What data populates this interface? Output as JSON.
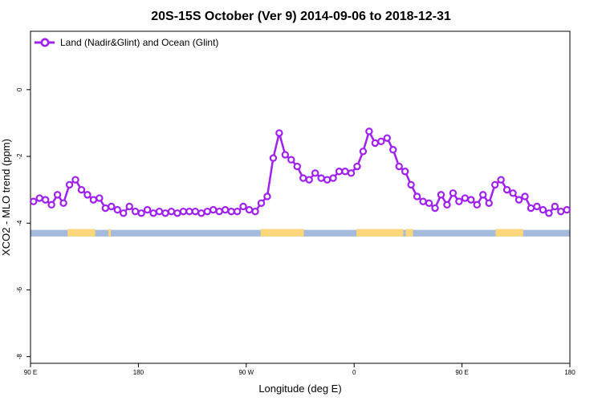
{
  "chart_data": {
    "type": "line",
    "title": "20S-15S October (Ver 9)   2014-09-06 to 2018-12-31",
    "xlabel": "Longitude (deg E)",
    "ylabel": "XCO2 - MLO trend (ppm)",
    "x_ticks": [
      {
        "value": 90,
        "label": "90 E"
      },
      {
        "value": 180,
        "label": "180"
      },
      {
        "value": 270,
        "label": "90 W"
      },
      {
        "value": 360,
        "label": "0"
      },
      {
        "value": 450,
        "label": "90 E"
      },
      {
        "value": 540,
        "label": "180"
      }
    ],
    "y_ticks": [
      {
        "value": 0,
        "label": "0"
      },
      {
        "value": -2,
        "label": "-2"
      },
      {
        "value": -4,
        "label": "-4"
      },
      {
        "value": -6,
        "label": "-6"
      },
      {
        "value": -8,
        "label": "-8"
      }
    ],
    "xlim": [
      90,
      540
    ],
    "ylim": [
      -8.2,
      1.75
    ],
    "grid": false,
    "legend_position": "top-left",
    "colors": {
      "series": "#a020f0",
      "ocean": "#a4bbdd",
      "land": "#fdd77a"
    },
    "series": [
      {
        "name": "Land (Nadir&Glint) and Ocean (Glint)",
        "x": [
          92.5,
          97.5,
          102.5,
          107.5,
          112.5,
          117.5,
          122.5,
          127.5,
          132.5,
          137.5,
          142.5,
          147.5,
          152.5,
          157.5,
          162.5,
          167.5,
          172.5,
          177.5,
          182.5,
          187.5,
          192.5,
          197.5,
          202.5,
          207.5,
          212.5,
          217.5,
          222.5,
          227.5,
          232.5,
          237.5,
          242.5,
          247.5,
          252.5,
          257.5,
          262.5,
          267.5,
          272.5,
          277.5,
          282.5,
          287.5,
          292.5,
          297.5,
          302.5,
          307.5,
          312.5,
          317.5,
          322.5,
          327.5,
          332.5,
          337.5,
          342.5,
          347.5,
          352.5,
          357.5,
          362.5,
          367.5,
          372.5,
          377.5,
          382.5,
          387.5,
          392.5,
          397.5,
          402.5,
          407.5,
          412.5,
          417.5,
          422.5,
          427.5,
          432.5,
          437.5,
          442.5,
          447.5,
          452.5,
          457.5,
          462.5,
          467.5,
          472.5,
          477.5,
          482.5,
          487.5,
          492.5,
          497.5,
          502.5,
          507.5,
          512.5,
          517.5,
          522.5,
          527.5,
          532.5,
          537.5
        ],
        "y": [
          -3.35,
          -3.25,
          -3.3,
          -3.45,
          -3.15,
          -3.4,
          -2.85,
          -2.7,
          -3.0,
          -3.15,
          -3.3,
          -3.25,
          -3.55,
          -3.5,
          -3.6,
          -3.7,
          -3.5,
          -3.65,
          -3.7,
          -3.6,
          -3.7,
          -3.65,
          -3.7,
          -3.65,
          -3.7,
          -3.65,
          -3.65,
          -3.65,
          -3.7,
          -3.65,
          -3.6,
          -3.65,
          -3.6,
          -3.65,
          -3.65,
          -3.5,
          -3.6,
          -3.65,
          -3.4,
          -3.2,
          -2.05,
          -1.3,
          -1.95,
          -2.1,
          -2.3,
          -2.65,
          -2.7,
          -2.5,
          -2.65,
          -2.7,
          -2.65,
          -2.45,
          -2.45,
          -2.5,
          -2.3,
          -1.85,
          -1.25,
          -1.6,
          -1.55,
          -1.45,
          -1.8,
          -2.3,
          -2.45,
          -2.85,
          -3.2,
          -3.35,
          -3.4,
          -3.55,
          -3.15,
          -3.45,
          -3.1,
          -3.35,
          -3.25,
          -3.3,
          -3.45,
          -3.15,
          -3.4,
          -2.85,
          -2.7,
          -3.0,
          -3.1,
          -3.3,
          -3.2,
          -3.55,
          -3.5,
          -3.6,
          -3.7,
          -3.5,
          -3.65,
          -3.6
        ]
      }
    ],
    "surface_band": {
      "y_range": [
        -4.2,
        -4.4
      ],
      "land_segments": [
        [
          121,
          144
        ],
        [
          155,
          157
        ],
        [
          282,
          318
        ],
        [
          362,
          401
        ],
        [
          403,
          409
        ],
        [
          478,
          501
        ]
      ]
    }
  }
}
